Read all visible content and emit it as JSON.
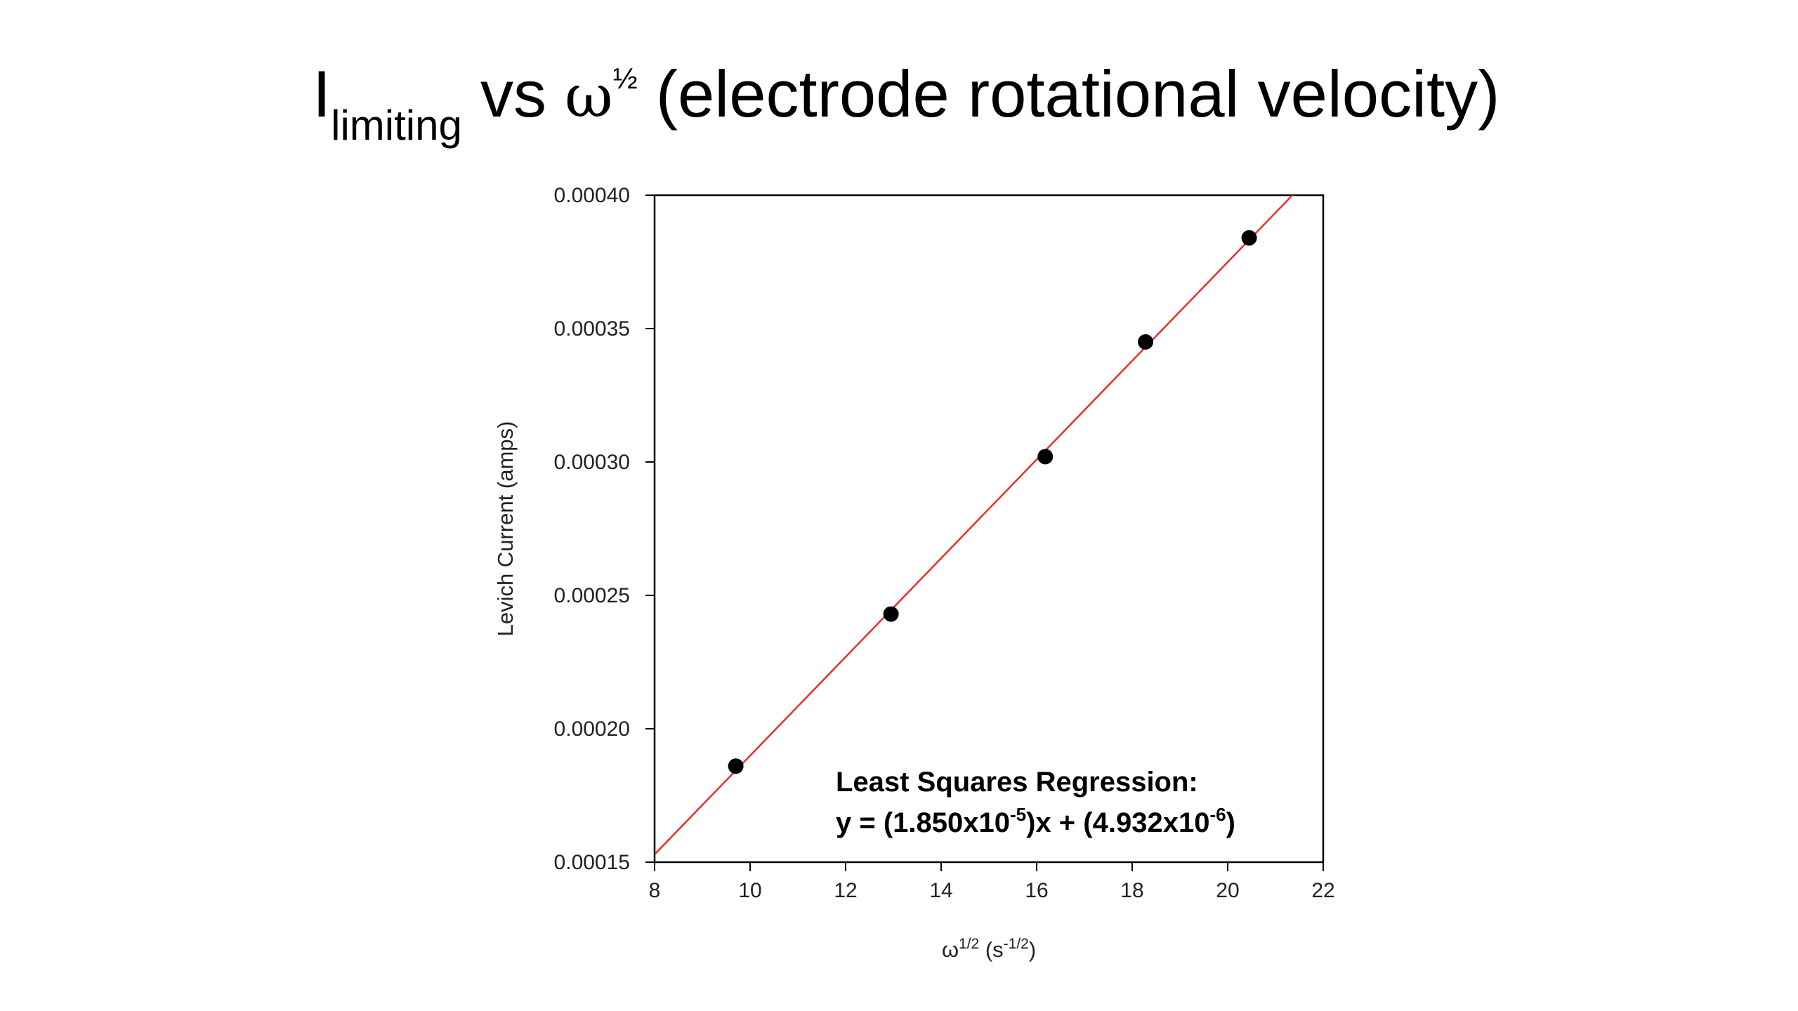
{
  "slide": {
    "title_I": "I",
    "title_sub": "limiting",
    "title_vs": " vs  ",
    "title_omega": "ω",
    "title_sup": "½",
    "title_rest": " (electrode rotational velocity)"
  },
  "chart_data": {
    "type": "scatter",
    "xlabel_base": "ω",
    "xlabel_exp": "1/2",
    "xlabel_unit_open": " (s",
    "xlabel_unit_exp": "-1/2",
    "xlabel_unit_close": ")",
    "ylabel": "Levich Current (amps)",
    "xlim": [
      8,
      22
    ],
    "ylim": [
      0.00015,
      0.0004
    ],
    "xticks": [
      8,
      10,
      12,
      14,
      16,
      18,
      20,
      22
    ],
    "xtick_labels": [
      "8",
      "10",
      "12",
      "14",
      "16",
      "18",
      "20",
      "22"
    ],
    "yticks": [
      0.00015,
      0.0002,
      0.00025,
      0.0003,
      0.00035,
      0.0004
    ],
    "ytick_labels": [
      "0.00015",
      "0.00020",
      "0.00025",
      "0.00030",
      "0.00035",
      "0.00040"
    ],
    "grid": false,
    "series": [
      {
        "points": [
          {
            "x": 9.7,
            "y": 0.000186
          },
          {
            "x": 12.95,
            "y": 0.000243
          },
          {
            "x": 16.18,
            "y": 0.000302
          },
          {
            "x": 18.28,
            "y": 0.000345
          },
          {
            "x": 20.45,
            "y": 0.000384
          }
        ],
        "color": "#000000"
      }
    ],
    "regression": {
      "slope": 1.85e-05,
      "intercept": 4.932e-06,
      "color": "#e8302a",
      "label_line1": "Least Squares Regression:",
      "eq_a": "y = (1.850x10",
      "eq_a_exp": "-5",
      "eq_b": ")x + (4.932x10",
      "eq_b_exp": "-6",
      "eq_c": ")"
    }
  }
}
